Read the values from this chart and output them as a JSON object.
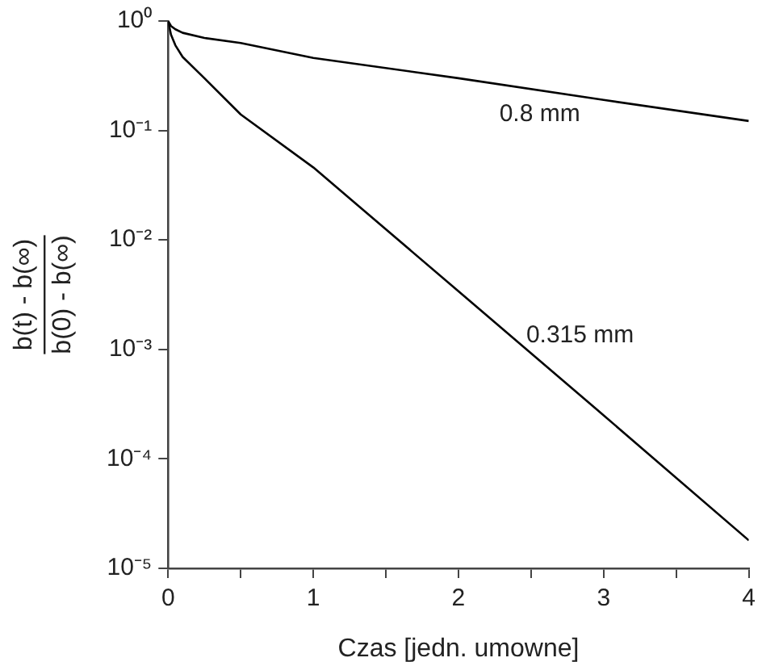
{
  "chart_data": {
    "type": "line",
    "xlabel": "Czas [jedn. umowne]",
    "ylabel": "b(t) - b(∞)\nb(0) - b(∞)",
    "log": "y",
    "grid": false,
    "legend": false,
    "marker": "none",
    "line_style": "solid",
    "xlim": [
      0,
      4
    ],
    "xticks": [
      0,
      {
        "value": 0.5,
        "label": null
      },
      1,
      {
        "value": 1.5,
        "label": null
      },
      2,
      {
        "value": 2.5,
        "label": null
      },
      3,
      {
        "value": 3.5,
        "label": null
      },
      4
    ],
    "ylim": [
      1e-05,
      1
    ],
    "yticks": [
      {
        "value": 1,
        "label": "10⁰"
      },
      {
        "value": 0.1,
        "label": "10⁻¹"
      },
      {
        "value": 0.01,
        "label": "10⁻²"
      },
      {
        "value": 0.001,
        "label": "10⁻³"
      },
      {
        "value": 0.0001,
        "label": "10⁻⁴"
      },
      {
        "value": 1e-05,
        "label": "10⁻⁵"
      }
    ],
    "series": [
      {
        "name": "0.8 mm",
        "color": "#000000",
        "x": [
          0,
          0.02,
          0.05,
          0.1,
          0.25,
          0.5,
          1,
          2,
          3,
          4
        ],
        "values": [
          1,
          0.9,
          0.84,
          0.78,
          0.7,
          0.63,
          0.46,
          0.3,
          0.19,
          0.122
        ]
      },
      {
        "name": "0.315 mm",
        "color": "#000000",
        "x": [
          0,
          0.02,
          0.05,
          0.1,
          0.25,
          0.5,
          1,
          2,
          3,
          4
        ],
        "values": [
          1,
          0.75,
          0.6,
          0.47,
          0.3,
          0.14,
          0.046,
          0.0034,
          0.00025,
          1.8e-05
        ]
      }
    ]
  }
}
